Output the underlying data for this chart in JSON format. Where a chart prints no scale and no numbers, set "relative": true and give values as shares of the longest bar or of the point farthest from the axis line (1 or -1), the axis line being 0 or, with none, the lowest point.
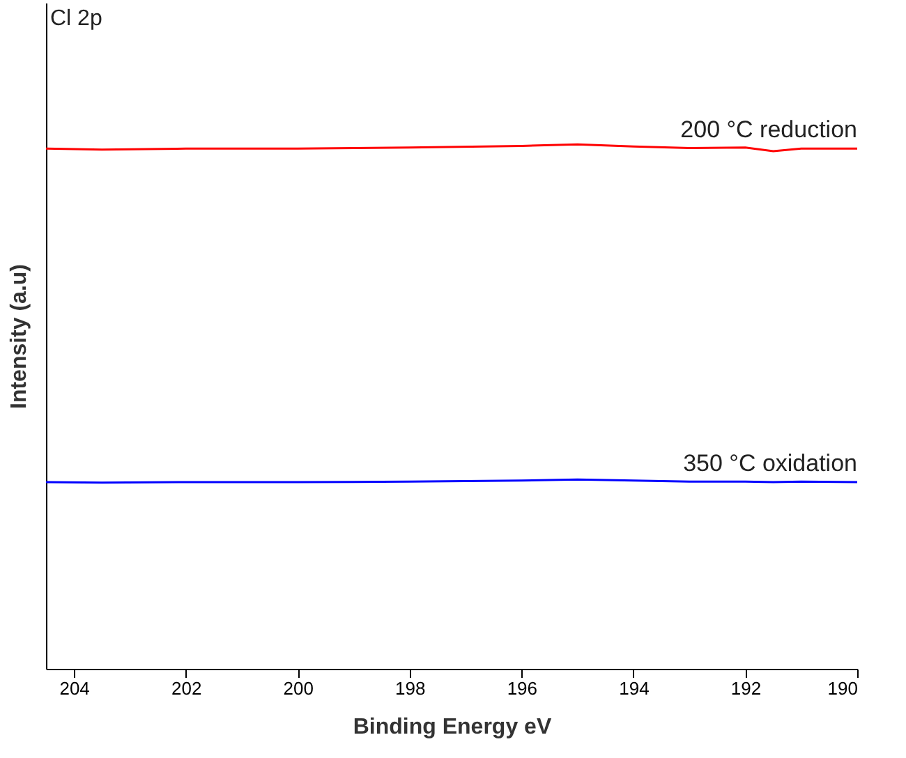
{
  "chart_data": {
    "type": "line",
    "xlabel": "Binding Energy eV",
    "ylabel": "Intensity (a.u)",
    "relative": true,
    "annotations": [
      "Cl 2p"
    ],
    "xlim": [
      204.5,
      190
    ],
    "xticks": [
      204,
      202,
      200,
      198,
      196,
      194,
      192,
      190
    ],
    "x": [
      204.5,
      203.5,
      202,
      200,
      198,
      196,
      195,
      194,
      193,
      192,
      191.5,
      191,
      190
    ],
    "series": [
      {
        "name": "200 °C reduction",
        "color": "#ff0000",
        "values": [
          0.992,
          0.99,
          0.992,
          0.992,
          0.994,
          0.997,
          1.0,
          0.996,
          0.993,
          0.994,
          0.987,
          0.992,
          0.992
        ]
      },
      {
        "name": "350 °C oxidation",
        "color": "#0000ff",
        "values": [
          0.356,
          0.355,
          0.356,
          0.356,
          0.357,
          0.359,
          0.361,
          0.359,
          0.357,
          0.357,
          0.356,
          0.357,
          0.356
        ]
      }
    ],
    "grid": false,
    "legend": false,
    "marker": "none",
    "line_style": "solid"
  }
}
